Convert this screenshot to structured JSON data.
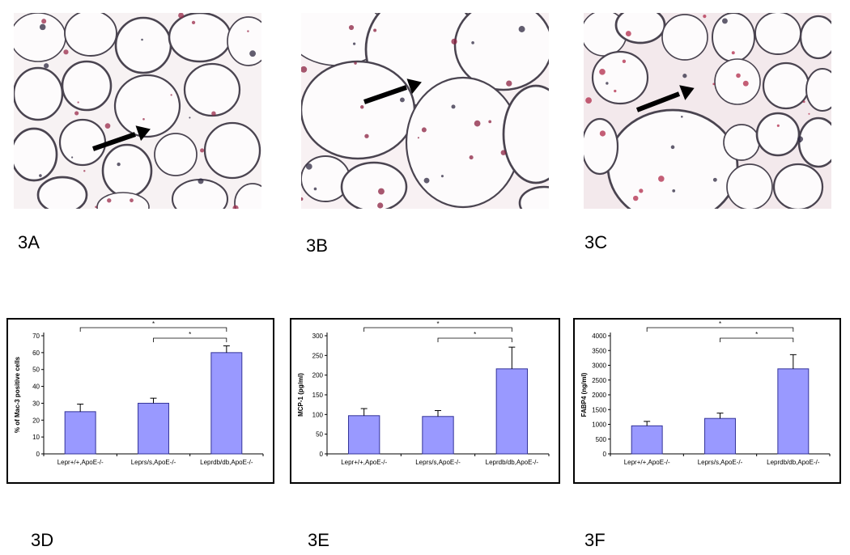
{
  "panels": {
    "labels": [
      "3A",
      "3B",
      "3C",
      "3D",
      "3E",
      "3F"
    ]
  },
  "micrographs": [
    {
      "id": "3A",
      "stain_color": "#9a2a4a",
      "background": "#f7f2f3"
    },
    {
      "id": "3B",
      "stain_color": "#8a2040",
      "background": "#f8f1f3"
    },
    {
      "id": "3C",
      "stain_color": "#b02a4a",
      "background": "#f3e9ec"
    }
  ],
  "colors": {
    "bar_fill": "#9999ff",
    "bar_stroke": "#333399"
  },
  "chart_data": [
    {
      "type": "bar",
      "panel": "3D",
      "categories": [
        "Lepr+/+,ApoE-/-",
        "Leprs/s,ApoE-/-",
        "Leprdb/db,ApoE-/-"
      ],
      "values": [
        25,
        30,
        60
      ],
      "errors": [
        4.5,
        3,
        4
      ],
      "ylabel": "% of Mac-3 positive cells",
      "ylim": [
        0,
        70
      ],
      "yticks": [
        0,
        10,
        20,
        30,
        40,
        50,
        60,
        70
      ],
      "significance": [
        {
          "from": 0,
          "to": 2,
          "label": "*"
        },
        {
          "from": 1,
          "to": 2,
          "label": "*"
        }
      ]
    },
    {
      "type": "bar",
      "panel": "3E",
      "categories": [
        "Lepr+/+,ApoE-/-",
        "Leprs/s,ApoE-/-",
        "Leprdb/db,ApoE-/-"
      ],
      "values": [
        97,
        95,
        216
      ],
      "errors": [
        18,
        15,
        55
      ],
      "ylabel": "MCP-1 (pg/ml)",
      "ylim": [
        0,
        300
      ],
      "yticks": [
        0,
        50,
        100,
        150,
        200,
        250,
        300
      ],
      "significance": [
        {
          "from": 0,
          "to": 2,
          "label": "*"
        },
        {
          "from": 1,
          "to": 2,
          "label": "*"
        }
      ]
    },
    {
      "type": "bar",
      "panel": "3F",
      "categories": [
        "Lepr+/+,ApoE-/-",
        "Leprs/s,ApoE-/-",
        "Leprdb/db,ApoE-/-"
      ],
      "values": [
        950,
        1200,
        2880
      ],
      "errors": [
        150,
        180,
        480
      ],
      "ylabel": "FABP4 (ng/ml)",
      "ylim": [
        0,
        4000
      ],
      "yticks": [
        0,
        500,
        1000,
        1500,
        2000,
        2500,
        3000,
        3500,
        4000
      ],
      "significance": [
        {
          "from": 0,
          "to": 2,
          "label": "*"
        },
        {
          "from": 1,
          "to": 2,
          "label": "*"
        }
      ]
    }
  ]
}
